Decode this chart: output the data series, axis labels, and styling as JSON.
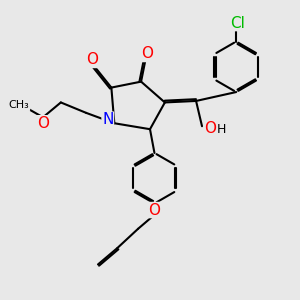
{
  "background_color": "#e8e8e8",
  "atom_colors": {
    "N": "#0000ff",
    "O": "#ff0000",
    "Cl": "#00bb00",
    "H": "#000000"
  },
  "bond_color": "#000000",
  "bond_width": 1.5,
  "title": "",
  "figsize": [
    3.0,
    3.0
  ],
  "dpi": 100,
  "xlim": [
    0.0,
    10.0
  ],
  "ylim": [
    0.0,
    10.0
  ]
}
